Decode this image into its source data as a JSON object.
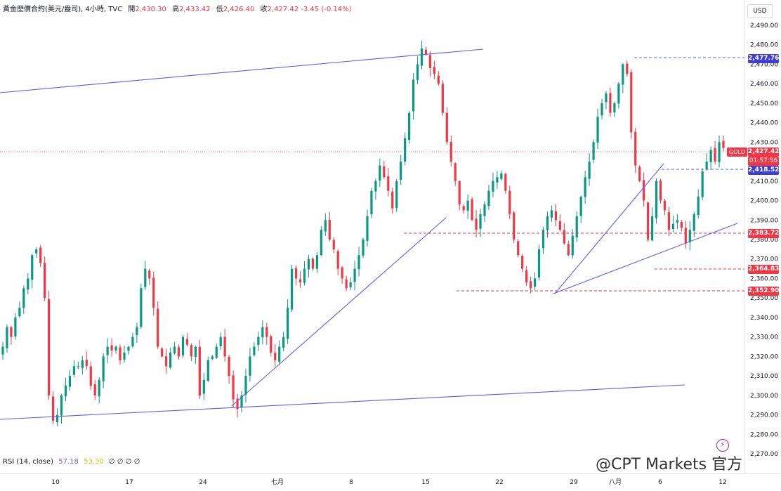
{
  "header": {
    "title": "黃金歷價合約(美元/盎司), 4小時, TVC",
    "o_label": "開",
    "o": "2,430.30",
    "h_label": "高",
    "h": "2,433.42",
    "l_label": "低",
    "l": "2,426.40",
    "c_label": "收",
    "c": "2,427.42",
    "change": "-3.45 (-0.14%)"
  },
  "currency_button": "USD",
  "rsi": {
    "label": "RSI (14, close)",
    "value1": "57.18",
    "value2": "53.30",
    "extra": "∅ ∅ ∅ ∅"
  },
  "watermark": "@CPT Markets 官方",
  "price_tags": {
    "high_line": "2,477.76",
    "symbol": "GOLD",
    "current": "2,427.42",
    "countdown": "01:57:56",
    "support_1": "2,418.52",
    "level_2": "2,383.72",
    "level_3": "2,364.83",
    "level_4": "2,352.90"
  },
  "colors": {
    "up": "#089981",
    "down": "#f23645",
    "trendline": "#5b5ff0",
    "support": "#5b5ff0"
  },
  "chart_data": {
    "type": "candlestick",
    "y_ticks": [
      "2,270.00",
      "2,280.00",
      "2,290.00",
      "2,300.00",
      "2,310.00",
      "2,320.00",
      "2,330.00",
      "2,340.00",
      "2,350.00",
      "2,360.00",
      "2,370.00",
      "2,380.00",
      "2,390.00",
      "2,400.00",
      "2,410.00",
      "2,420.00",
      "2,430.00",
      "2,440.00",
      "2,450.00",
      "2,460.00",
      "2,470.00",
      "2,480.00",
      "2,490.00"
    ],
    "ylim": [
      2265,
      2495
    ],
    "x_labels": [
      "10",
      "17",
      "24",
      "七月",
      "8",
      "15",
      "22",
      "29",
      "八月",
      "6",
      "12"
    ],
    "close_path": [
      2325,
      2335,
      2330,
      2340,
      2345,
      2355,
      2360,
      2372,
      2375,
      2368,
      2350,
      2300,
      2287,
      2290,
      2300,
      2305,
      2310,
      2315,
      2315,
      2318,
      2315,
      2305,
      2300,
      2308,
      2320,
      2325,
      2323,
      2325,
      2318,
      2322,
      2325,
      2330,
      2335,
      2355,
      2365,
      2360,
      2345,
      2325,
      2320,
      2315,
      2322,
      2325,
      2320,
      2330,
      2326,
      2320,
      2325,
      2300,
      2308,
      2318,
      2320,
      2325,
      2330,
      2320,
      2310,
      2298,
      2293,
      2300,
      2310,
      2320,
      2325,
      2330,
      2335,
      2330,
      2322,
      2318,
      2325,
      2330,
      2345,
      2365,
      2360,
      2358,
      2365,
      2370,
      2365,
      2372,
      2385,
      2390,
      2380,
      2375,
      2365,
      2360,
      2355,
      2358,
      2365,
      2372,
      2380,
      2392,
      2405,
      2410,
      2418,
      2412,
      2405,
      2396,
      2410,
      2420,
      2432,
      2445,
      2462,
      2470,
      2478,
      2475,
      2468,
      2465,
      2460,
      2445,
      2430,
      2420,
      2410,
      2398,
      2395,
      2400,
      2390,
      2385,
      2393,
      2398,
      2405,
      2410,
      2412,
      2414,
      2405,
      2393,
      2380,
      2372,
      2365,
      2358,
      2355,
      2360,
      2375,
      2385,
      2392,
      2395,
      2390,
      2385,
      2378,
      2372,
      2382,
      2392,
      2402,
      2412,
      2420,
      2430,
      2443,
      2450,
      2455,
      2445,
      2450,
      2460,
      2470,
      2465,
      2435,
      2418,
      2410,
      2400,
      2380,
      2392,
      2410,
      2400,
      2395,
      2385,
      2388,
      2390,
      2386,
      2378,
      2385,
      2393,
      2402,
      2415,
      2420,
      2426,
      2420,
      2430,
      2427
    ]
  }
}
